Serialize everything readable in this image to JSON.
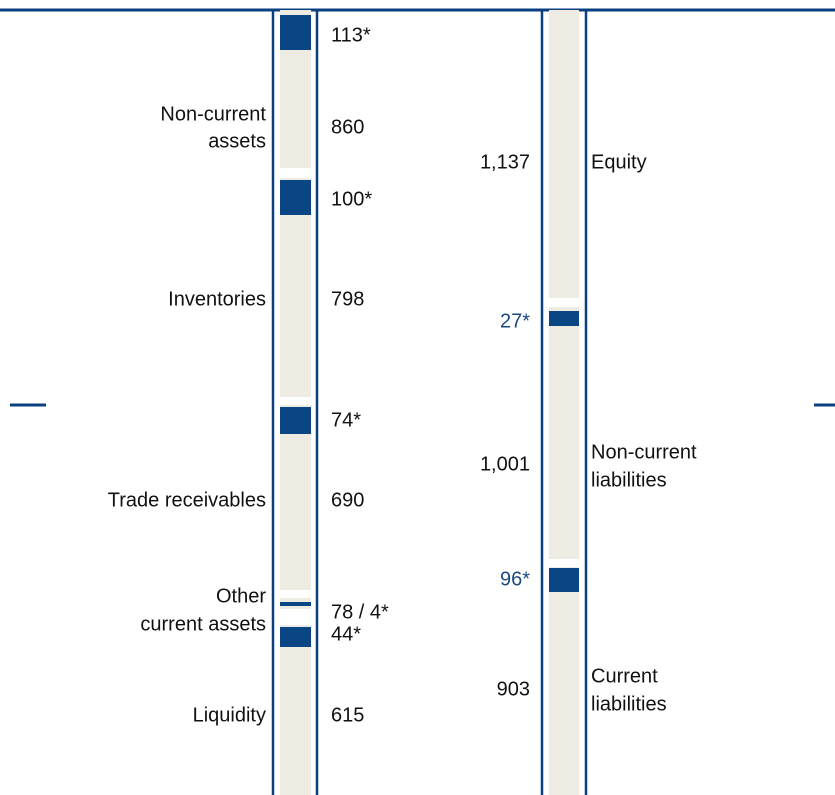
{
  "assets": {
    "items": [
      {
        "label": [
          "Non-current",
          "assets"
        ],
        "value": "860",
        "adjustment": "113*"
      },
      {
        "label": [
          "Inventories"
        ],
        "value": "798",
        "adjustment": "100*"
      },
      {
        "label": [
          "Trade receivables"
        ],
        "value": "690",
        "adjustment": "74*"
      },
      {
        "label": [
          "Other",
          "current assets"
        ],
        "value": "78 / 4*",
        "adjustment": "44*"
      },
      {
        "label": [
          "Liquidity"
        ],
        "value": "615"
      }
    ]
  },
  "liabilities": {
    "items": [
      {
        "label": [
          "Equity"
        ],
        "value": "1,137",
        "adjustment": "27*"
      },
      {
        "label": [
          "Non-current",
          "liabilities"
        ],
        "value": "1,001",
        "adjustment": "96*"
      },
      {
        "label": [
          "Current",
          "liabilities"
        ],
        "value": "903"
      }
    ]
  }
}
